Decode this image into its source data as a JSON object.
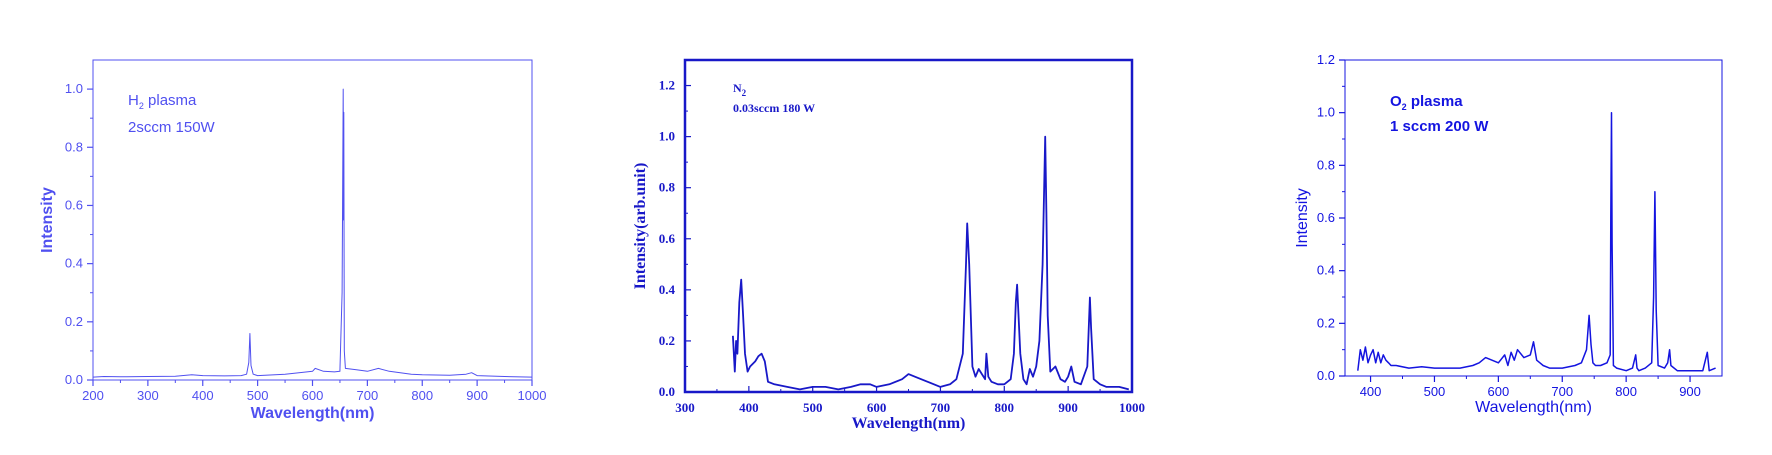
{
  "chart_data": [
    {
      "type": "line",
      "color": "#5050F0",
      "annotation_line1": "H",
      "annotation_line1_sub": "2",
      "annotation_line1_rest": " plasma",
      "annotation_line2": "2sccm 150W",
      "xlabel": "Wavelength(nm)",
      "ylabel": "Intensity",
      "xlim": [
        200,
        1000
      ],
      "ylim": [
        0,
        1.1
      ],
      "xticks": [
        "200",
        "300",
        "400",
        "500",
        "600",
        "700",
        "800",
        "900",
        "1000"
      ],
      "yticks": [
        "0.0",
        "0.2",
        "0.4",
        "0.6",
        "0.8",
        "1.0"
      ],
      "series": [
        {
          "x": [
            200,
            220,
            250,
            300,
            350,
            380,
            400,
            440,
            470,
            480,
            484,
            486,
            488,
            492,
            500,
            550,
            590,
            600,
            605,
            620,
            640,
            650,
            654,
            656,
            656.5,
            657,
            658,
            660,
            680,
            700,
            720,
            740,
            760,
            780,
            800,
            850,
            880,
            890,
            900,
            950,
            1000
          ],
          "y": [
            0.01,
            0.012,
            0.011,
            0.012,
            0.013,
            0.018,
            0.015,
            0.014,
            0.015,
            0.02,
            0.06,
            0.16,
            0.05,
            0.02,
            0.015,
            0.02,
            0.028,
            0.03,
            0.04,
            0.03,
            0.028,
            0.03,
            0.3,
            1.0,
            0.55,
            0.92,
            0.1,
            0.04,
            0.035,
            0.03,
            0.04,
            0.03,
            0.025,
            0.02,
            0.018,
            0.016,
            0.02,
            0.025,
            0.015,
            0.012,
            0.01
          ]
        }
      ]
    },
    {
      "type": "line",
      "color": "#1818C8",
      "annotation_line1": "N",
      "annotation_line1_sub": "2",
      "annotation_line2": "0.03sccm   180 W",
      "xlabel": "Wavelength(nm)",
      "ylabel": "Intensity(arb.unit)",
      "xlim": [
        300,
        1000
      ],
      "ylim": [
        0,
        1.3
      ],
      "xticks": [
        "300",
        "400",
        "500",
        "600",
        "700",
        "800",
        "900",
        "1000"
      ],
      "yticks": [
        "0.0",
        "0.2",
        "0.4",
        "0.6",
        "0.8",
        "1.0",
        "1.2"
      ],
      "series": [
        {
          "x": [
            375,
            378,
            380,
            382,
            385,
            388,
            391,
            394,
            398,
            402,
            410,
            415,
            420,
            425,
            430,
            440,
            460,
            480,
            500,
            520,
            540,
            560,
            575,
            590,
            600,
            620,
            640,
            650,
            660,
            680,
            700,
            715,
            725,
            735,
            740,
            742,
            745,
            750,
            755,
            760,
            765,
            770,
            772,
            775,
            780,
            790,
            800,
            810,
            815,
            818,
            820,
            825,
            830,
            835,
            840,
            845,
            850,
            855,
            860,
            864,
            866,
            868,
            872,
            880,
            888,
            895,
            900,
            905,
            910,
            920,
            930,
            934,
            936,
            940,
            950,
            960,
            980,
            995
          ],
          "y": [
            0.22,
            0.08,
            0.2,
            0.15,
            0.35,
            0.44,
            0.3,
            0.15,
            0.08,
            0.1,
            0.12,
            0.14,
            0.15,
            0.12,
            0.04,
            0.03,
            0.02,
            0.01,
            0.02,
            0.02,
            0.01,
            0.02,
            0.03,
            0.03,
            0.02,
            0.03,
            0.05,
            0.07,
            0.06,
            0.04,
            0.02,
            0.03,
            0.05,
            0.15,
            0.5,
            0.66,
            0.5,
            0.1,
            0.06,
            0.09,
            0.07,
            0.05,
            0.15,
            0.06,
            0.04,
            0.03,
            0.03,
            0.05,
            0.15,
            0.35,
            0.42,
            0.15,
            0.05,
            0.03,
            0.09,
            0.06,
            0.1,
            0.2,
            0.5,
            1.0,
            0.7,
            0.3,
            0.08,
            0.1,
            0.05,
            0.04,
            0.06,
            0.1,
            0.04,
            0.03,
            0.1,
            0.37,
            0.25,
            0.05,
            0.03,
            0.02,
            0.02,
            0.01
          ]
        }
      ]
    },
    {
      "type": "line",
      "color": "#1414E0",
      "annotation_line1": "O",
      "annotation_line1_sub": "2",
      "annotation_line1_rest": " plasma",
      "annotation_line2": "1 sccm 200 W",
      "xlabel": "Wavelength(nm)",
      "ylabel": "Intensity",
      "xlim": [
        360,
        950
      ],
      "ylim": [
        0,
        1.2
      ],
      "xticks": [
        "400",
        "500",
        "600",
        "700",
        "800",
        "900"
      ],
      "yticks": [
        "0.0",
        "0.2",
        "0.4",
        "0.6",
        "0.8",
        "1.0",
        "1.2"
      ],
      "series": [
        {
          "x": [
            380,
            384,
            388,
            392,
            396,
            400,
            404,
            408,
            412,
            416,
            420,
            424,
            428,
            432,
            440,
            460,
            480,
            500,
            520,
            540,
            560,
            570,
            580,
            590,
            600,
            610,
            615,
            620,
            625,
            630,
            640,
            650,
            655,
            660,
            665,
            670,
            680,
            700,
            720,
            730,
            738,
            742,
            745,
            748,
            752,
            760,
            770,
            775,
            776,
            777,
            778,
            780,
            785,
            800,
            810,
            815,
            817,
            820,
            830,
            840,
            843,
            845,
            847,
            850,
            860,
            865,
            868,
            870,
            880,
            900,
            920,
            925,
            927,
            930,
            940
          ],
          "y": [
            0.02,
            0.1,
            0.06,
            0.11,
            0.05,
            0.08,
            0.1,
            0.05,
            0.09,
            0.05,
            0.08,
            0.06,
            0.05,
            0.04,
            0.04,
            0.03,
            0.035,
            0.03,
            0.03,
            0.03,
            0.04,
            0.05,
            0.07,
            0.06,
            0.05,
            0.08,
            0.04,
            0.09,
            0.06,
            0.1,
            0.07,
            0.08,
            0.13,
            0.06,
            0.05,
            0.04,
            0.03,
            0.03,
            0.04,
            0.05,
            0.1,
            0.23,
            0.12,
            0.05,
            0.04,
            0.04,
            0.05,
            0.08,
            0.6,
            1.0,
            0.5,
            0.04,
            0.03,
            0.02,
            0.03,
            0.08,
            0.03,
            0.02,
            0.03,
            0.05,
            0.3,
            0.7,
            0.25,
            0.04,
            0.03,
            0.05,
            0.1,
            0.04,
            0.02,
            0.02,
            0.02,
            0.07,
            0.09,
            0.02,
            0.03
          ]
        }
      ]
    }
  ]
}
